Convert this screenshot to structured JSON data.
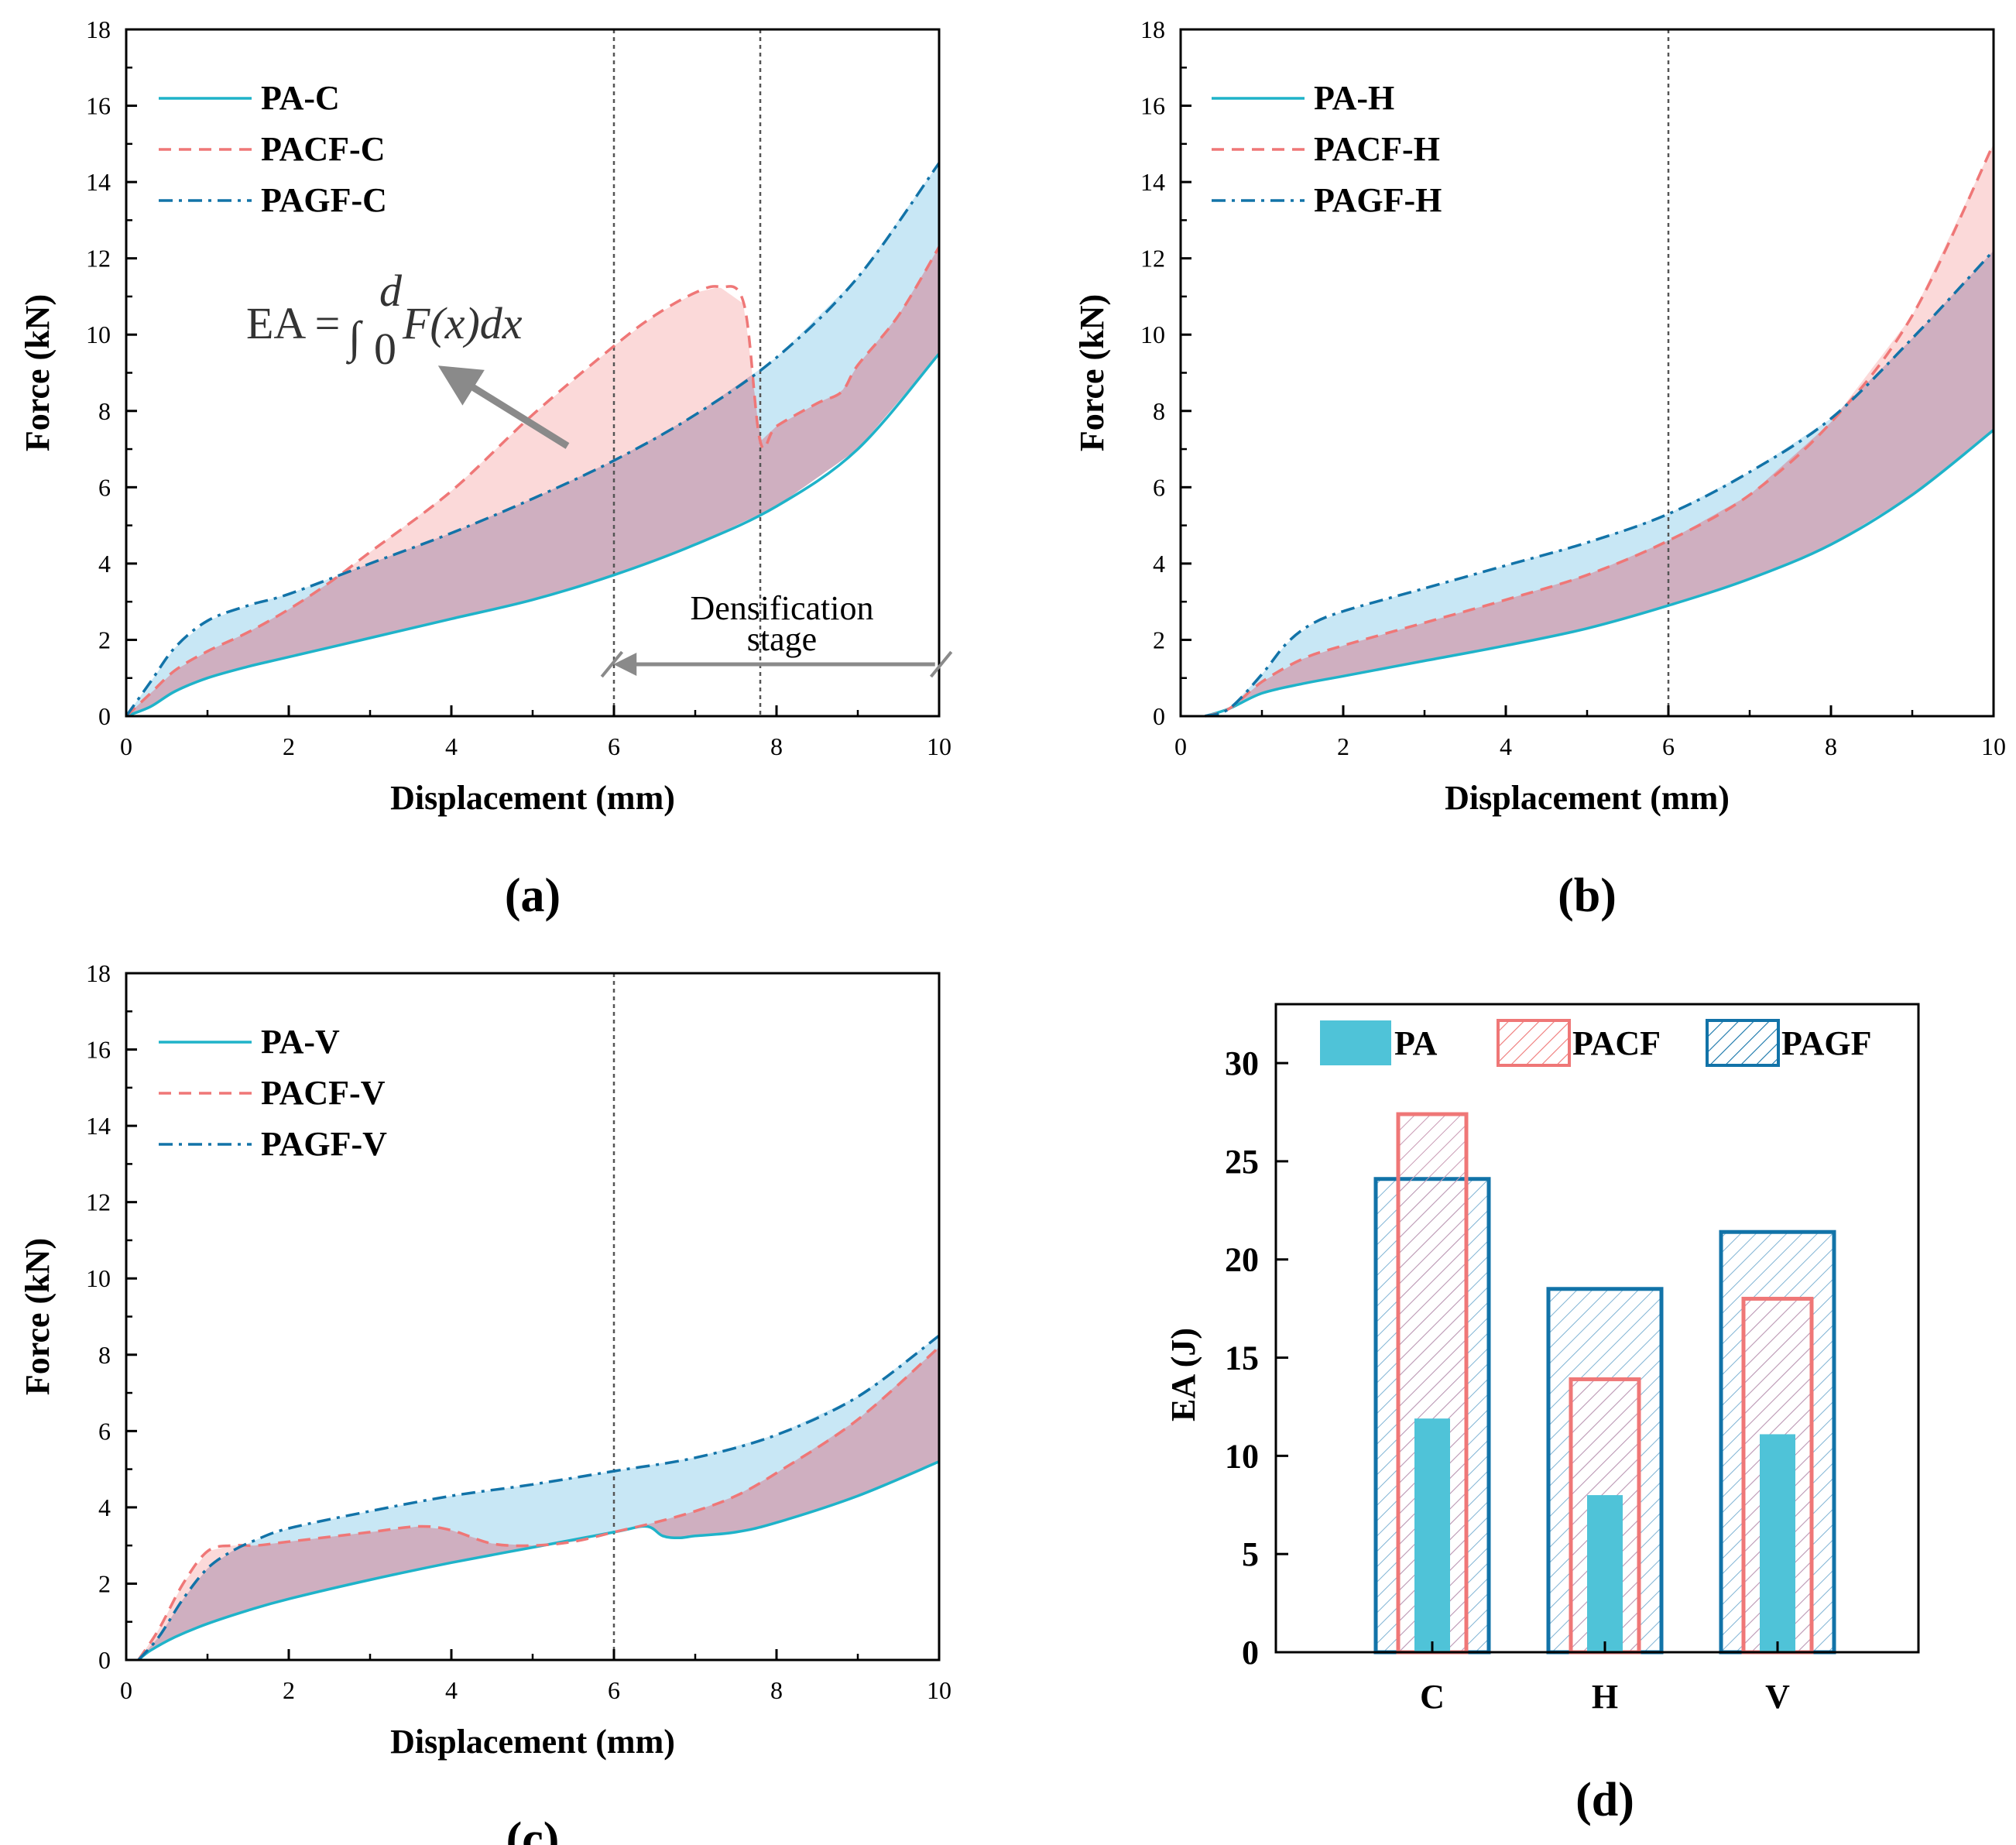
{
  "colors": {
    "PA": "#1fb3c9",
    "PACF": "#ef7777",
    "PAGF": "#1273a8",
    "fill_PA_to_PACF": "#f9c4c4",
    "fill_blue": "#b6dff2",
    "fill_overlap": "#c8a6ba",
    "bar_PA": "#4fc3d8",
    "grey_arrow": "#8a8a8a"
  },
  "chart_data": [
    {
      "id": "a",
      "type": "line",
      "panel_label": "(a)",
      "xlabel": "Displacement (mm)",
      "ylabel": "Force (kN)",
      "xlim": [
        0,
        10
      ],
      "ylim": [
        0,
        18
      ],
      "xticks": [
        "0",
        "2",
        "4",
        "6",
        "8",
        "10"
      ],
      "yticks": [
        "0",
        "2",
        "4",
        "6",
        "8",
        "10",
        "12",
        "14",
        "16",
        "18"
      ],
      "grid": false,
      "legend_position": "top-left",
      "vlines": [
        6,
        7.8
      ],
      "annotation_text": "Densification",
      "annotation_text2": "stage",
      "formula": {
        "lhs": "EA = ",
        "integral": "∫",
        "upper": "d",
        "lower": "0",
        "body": "F(x)dx"
      },
      "series": [
        {
          "name": "PA-C",
          "style": "solid",
          "x": [
            0,
            0.3,
            0.6,
            1,
            1.5,
            2,
            3,
            4,
            5,
            6,
            7,
            8,
            9,
            10
          ],
          "y": [
            0,
            0.25,
            0.65,
            1.0,
            1.3,
            1.55,
            2.05,
            2.55,
            3.05,
            3.7,
            4.5,
            5.5,
            7.0,
            9.5
          ]
        },
        {
          "name": "PACF-C",
          "style": "dashed",
          "x": [
            0,
            0.3,
            0.6,
            1,
            1.5,
            2,
            2.5,
            3,
            4,
            5,
            6,
            6.5,
            7,
            7.3,
            7.6,
            7.8,
            8,
            8.5,
            8.8,
            9,
            9.5,
            10
          ],
          "y": [
            0,
            0.6,
            1.2,
            1.7,
            2.2,
            2.8,
            3.5,
            4.3,
            5.9,
            7.9,
            9.7,
            10.5,
            11.1,
            11.25,
            10.8,
            7.2,
            7.6,
            8.2,
            8.5,
            9.2,
            10.5,
            12.3
          ]
        },
        {
          "name": "PAGF-C",
          "style": "dashdot",
          "x": [
            0,
            0.3,
            0.6,
            1,
            1.5,
            2,
            3,
            4,
            5,
            6,
            7,
            8,
            9,
            10
          ],
          "y": [
            0,
            0.9,
            1.8,
            2.5,
            2.9,
            3.2,
            4.0,
            4.8,
            5.7,
            6.7,
            7.9,
            9.4,
            11.5,
            14.5
          ]
        }
      ]
    },
    {
      "id": "b",
      "type": "line",
      "panel_label": "(b)",
      "xlabel": "Displacement (mm)",
      "ylabel": "Force (kN)",
      "xlim": [
        0,
        10
      ],
      "ylim": [
        0,
        18
      ],
      "xticks": [
        "0",
        "2",
        "4",
        "6",
        "8",
        "10"
      ],
      "yticks": [
        "0",
        "2",
        "4",
        "6",
        "8",
        "10",
        "12",
        "14",
        "16",
        "18"
      ],
      "grid": false,
      "legend_position": "top-left",
      "vlines": [
        6
      ],
      "series": [
        {
          "name": "PA-H",
          "style": "solid",
          "x": [
            0.3,
            0.6,
            1,
            1.5,
            2,
            3,
            4,
            5,
            6,
            7,
            8,
            9,
            10
          ],
          "y": [
            0,
            0.2,
            0.6,
            0.85,
            1.05,
            1.45,
            1.85,
            2.3,
            2.9,
            3.6,
            4.5,
            5.8,
            7.5
          ]
        },
        {
          "name": "PACF-H",
          "style": "dashed",
          "x": [
            0.3,
            0.6,
            1,
            1.5,
            2,
            3,
            4,
            5,
            6,
            7,
            8,
            9,
            10
          ],
          "y": [
            0,
            0.2,
            0.9,
            1.5,
            1.85,
            2.45,
            3.05,
            3.7,
            4.6,
            5.8,
            7.7,
            10.5,
            15.0
          ]
        },
        {
          "name": "PAGF-H",
          "style": "dashdot",
          "x": [
            0.3,
            0.6,
            1,
            1.3,
            1.6,
            2,
            3,
            4,
            5,
            6,
            7,
            8,
            9,
            10
          ],
          "y": [
            0,
            0.2,
            1.1,
            1.9,
            2.4,
            2.75,
            3.35,
            3.95,
            4.55,
            5.3,
            6.4,
            7.8,
            9.9,
            12.2
          ]
        }
      ]
    },
    {
      "id": "c",
      "type": "line",
      "panel_label": "(c)",
      "xlabel": "Displacement (mm)",
      "ylabel": "Force (kN)",
      "xlim": [
        0,
        10
      ],
      "ylim": [
        0,
        18
      ],
      "xticks": [
        "0",
        "2",
        "4",
        "6",
        "8",
        "10"
      ],
      "yticks": [
        "0",
        "2",
        "4",
        "6",
        "8",
        "10",
        "12",
        "14",
        "16",
        "18"
      ],
      "grid": false,
      "legend_position": "top-left",
      "vlines": [
        6
      ],
      "series": [
        {
          "name": "PA-V",
          "style": "solid",
          "x": [
            0.15,
            0.3,
            0.6,
            1,
            1.5,
            2,
            3,
            4,
            5,
            6,
            6.4,
            6.6,
            6.8,
            7,
            7.5,
            8,
            9,
            10
          ],
          "y": [
            0,
            0.25,
            0.6,
            0.95,
            1.3,
            1.6,
            2.1,
            2.55,
            2.95,
            3.35,
            3.5,
            3.25,
            3.2,
            3.25,
            3.35,
            3.6,
            4.3,
            5.2
          ]
        },
        {
          "name": "PACF-V",
          "style": "dashed",
          "x": [
            0.15,
            0.4,
            0.7,
            1,
            1.3,
            1.6,
            2,
            3,
            3.6,
            4,
            4.5,
            5,
            5.5,
            6,
            6.5,
            7,
            7.5,
            8,
            9,
            10
          ],
          "y": [
            0,
            0.8,
            2.0,
            2.85,
            3.0,
            3.0,
            3.1,
            3.35,
            3.5,
            3.4,
            3.05,
            3.0,
            3.1,
            3.35,
            3.6,
            3.9,
            4.3,
            4.9,
            6.3,
            8.2
          ]
        },
        {
          "name": "PAGF-V",
          "style": "dashdot",
          "x": [
            0.15,
            0.4,
            0.7,
            1,
            1.3,
            1.6,
            2,
            3,
            4,
            5,
            6,
            7,
            8,
            9,
            10
          ],
          "y": [
            0,
            0.6,
            1.6,
            2.4,
            2.85,
            3.15,
            3.45,
            3.9,
            4.3,
            4.6,
            4.95,
            5.3,
            5.9,
            6.9,
            8.5
          ]
        }
      ]
    },
    {
      "id": "d",
      "type": "bar",
      "panel_label": "(d)",
      "ylabel": "EA (J)",
      "ylim": [
        0,
        33
      ],
      "yticks": [
        "0",
        "5",
        "10",
        "15",
        "20",
        "25",
        "30"
      ],
      "categories": [
        "C",
        "H",
        "V"
      ],
      "legend_position": "top",
      "grid": false,
      "series": [
        {
          "name": "PA",
          "values": [
            11.9,
            8.0,
            11.1
          ]
        },
        {
          "name": "PACF",
          "values": [
            27.4,
            13.9,
            18.0
          ]
        },
        {
          "name": "PAGF",
          "values": [
            24.1,
            18.5,
            21.4
          ]
        }
      ]
    }
  ]
}
